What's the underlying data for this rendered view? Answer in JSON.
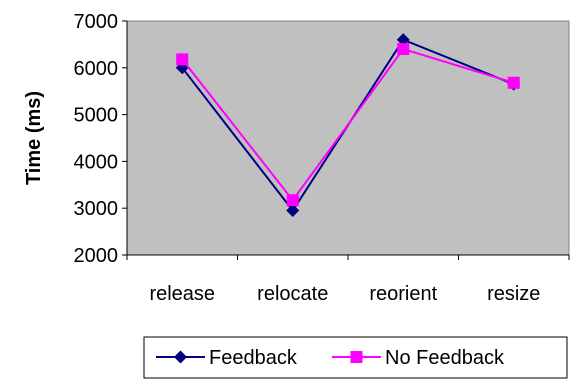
{
  "chart_data": {
    "type": "line",
    "title": "",
    "xlabel": "",
    "ylabel": "Time (ms)",
    "categories": [
      "release",
      "relocate",
      "reorient",
      "resize"
    ],
    "ylim": [
      2000,
      7000
    ],
    "yticks": [
      2000,
      3000,
      4000,
      5000,
      6000,
      7000
    ],
    "grid": false,
    "legend_placement": "bottom",
    "plot_background": "#c0c0c0",
    "series": [
      {
        "name": "Feedback",
        "values": [
          6000,
          2950,
          6600,
          5650
        ],
        "color": "#000080",
        "marker": "diamond"
      },
      {
        "name": "No Feedback",
        "values": [
          6180,
          3170,
          6400,
          5680
        ],
        "color": "#ff00ff",
        "marker": "square"
      }
    ]
  }
}
